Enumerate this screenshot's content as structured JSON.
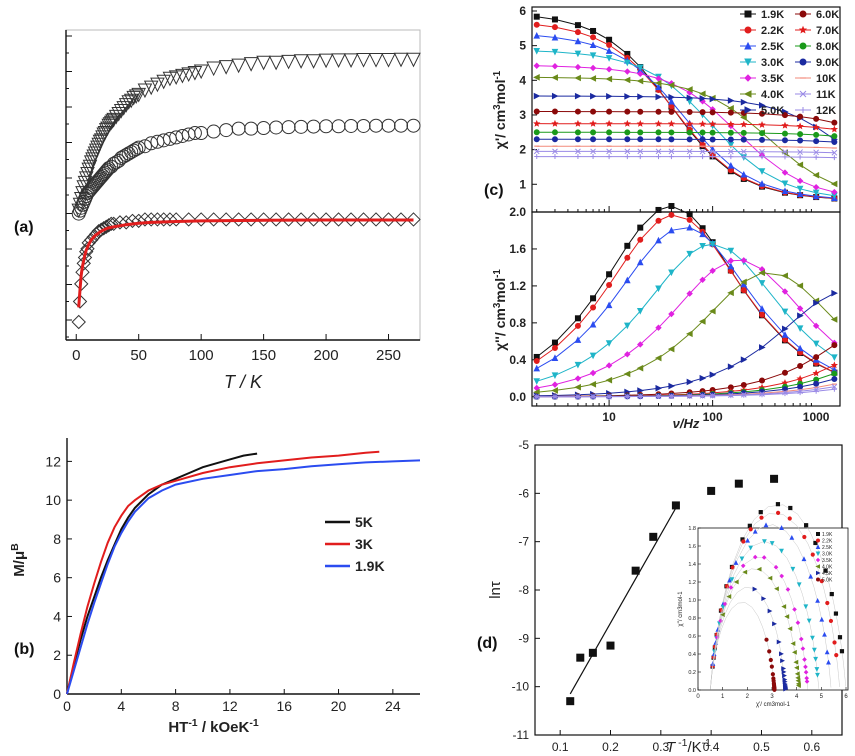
{
  "figure": {
    "panel_labels": {
      "a": "(a)",
      "b": "(b)",
      "c": "(c)",
      "d": "(d)"
    },
    "colors": {
      "black": "#111111",
      "red": "#e11d1d",
      "blue": "#2b4cf0",
      "green": "#1a9a1a",
      "magenta": "#e022e0",
      "olive": "#6a8a1a",
      "navy": "#1b2aa0",
      "darkred": "#8b0a0a",
      "salmon": "#f28a7a",
      "lavender": "#9a8ae6",
      "cyan": "#1fb5c8"
    }
  },
  "chart_data": [
    {
      "id": "a",
      "type": "scatter",
      "title": "",
      "xlabel": "T / K",
      "ylabel": "",
      "xlim": [
        -5,
        272
      ],
      "xticks": [
        0,
        50,
        100,
        150,
        200,
        250
      ],
      "xtick_labels": [
        "0",
        "50",
        "100",
        "150",
        "200",
        "250"
      ],
      "series": [
        {
          "name": "triangle_down",
          "marker": "triangle-down",
          "x": [
            2,
            3,
            4,
            5,
            6,
            7,
            8,
            9,
            10,
            11,
            12,
            13,
            14,
            15,
            16,
            17,
            18,
            19,
            20,
            21,
            22,
            23,
            24,
            25,
            26,
            27,
            28,
            29,
            30,
            32,
            34,
            36,
            38,
            40,
            42,
            44,
            46,
            48,
            50,
            55,
            60,
            65,
            70,
            75,
            80,
            85,
            90,
            95,
            100,
            110,
            120,
            130,
            140,
            150,
            160,
            170,
            180,
            190,
            200,
            210,
            220,
            230,
            240,
            250,
            260,
            270
          ],
          "y": [
            0.38,
            0.4,
            0.42,
            0.44,
            0.46,
            0.475,
            0.49,
            0.505,
            0.52,
            0.53,
            0.545,
            0.555,
            0.565,
            0.575,
            0.585,
            0.595,
            0.605,
            0.615,
            0.62,
            0.63,
            0.64,
            0.645,
            0.655,
            0.66,
            0.67,
            0.675,
            0.68,
            0.685,
            0.69,
            0.7,
            0.71,
            0.72,
            0.73,
            0.74,
            0.75,
            0.755,
            0.765,
            0.77,
            0.775,
            0.79,
            0.8,
            0.81,
            0.82,
            0.83,
            0.835,
            0.84,
            0.845,
            0.85,
            0.855,
            0.865,
            0.87,
            0.875,
            0.88,
            0.885,
            0.885,
            0.888,
            0.89,
            0.89,
            0.892,
            0.893,
            0.893,
            0.894,
            0.894,
            0.894,
            0.895,
            0.895
          ]
        },
        {
          "name": "circle",
          "marker": "circle",
          "x": [
            2,
            3,
            4,
            5,
            6,
            7,
            8,
            9,
            10,
            11,
            12,
            13,
            14,
            15,
            16,
            17,
            18,
            19,
            20,
            21,
            22,
            23,
            24,
            25,
            26,
            28,
            30,
            32,
            34,
            36,
            38,
            40,
            42,
            44,
            46,
            48,
            50,
            55,
            60,
            65,
            70,
            75,
            80,
            85,
            90,
            95,
            100,
            110,
            120,
            130,
            140,
            150,
            160,
            170,
            180,
            190,
            200,
            210,
            220,
            230,
            240,
            250,
            260,
            270
          ],
          "y": [
            0.37,
            0.38,
            0.39,
            0.4,
            0.41,
            0.42,
            0.43,
            0.44,
            0.445,
            0.45,
            0.455,
            0.46,
            0.465,
            0.47,
            0.475,
            0.48,
            0.485,
            0.49,
            0.495,
            0.5,
            0.505,
            0.51,
            0.515,
            0.52,
            0.525,
            0.53,
            0.54,
            0.545,
            0.55,
            0.56,
            0.565,
            0.57,
            0.575,
            0.58,
            0.585,
            0.59,
            0.595,
            0.6,
            0.61,
            0.615,
            0.62,
            0.625,
            0.63,
            0.635,
            0.64,
            0.645,
            0.645,
            0.65,
            0.655,
            0.66,
            0.66,
            0.662,
            0.664,
            0.665,
            0.666,
            0.667,
            0.668,
            0.668,
            0.669,
            0.669,
            0.67,
            0.67,
            0.67,
            0.67
          ]
        },
        {
          "name": "diamond",
          "marker": "diamond",
          "x": [
            2,
            3,
            4,
            5,
            6,
            7,
            8,
            9,
            10,
            12,
            14,
            16,
            18,
            20,
            22,
            24,
            26,
            28,
            30,
            35,
            40,
            45,
            50,
            55,
            60,
            65,
            70,
            75,
            80,
            90,
            100,
            110,
            120,
            130,
            140,
            150,
            160,
            170,
            180,
            190,
            200,
            210,
            220,
            230,
            240,
            250,
            260,
            270
          ],
          "y": [
            0.0,
            0.07,
            0.13,
            0.17,
            0.2,
            0.22,
            0.24,
            0.25,
            0.27,
            0.28,
            0.29,
            0.3,
            0.31,
            0.315,
            0.32,
            0.325,
            0.33,
            0.335,
            0.335,
            0.34,
            0.34,
            0.345,
            0.345,
            0.35,
            0.35,
            0.35,
            0.35,
            0.35,
            0.35,
            0.35,
            0.35,
            0.35,
            0.35,
            0.35,
            0.35,
            0.35,
            0.35,
            0.35,
            0.35,
            0.35,
            0.35,
            0.35,
            0.35,
            0.35,
            0.35,
            0.35,
            0.35,
            0.35
          ]
        },
        {
          "name": "fit",
          "type": "line",
          "x": [
            2,
            3,
            4,
            5,
            6,
            7,
            8,
            10,
            12,
            15,
            20,
            25,
            30,
            40,
            50,
            60,
            80,
            100,
            150,
            200,
            250,
            270
          ],
          "y": [
            0.05,
            0.11,
            0.16,
            0.19,
            0.21,
            0.23,
            0.245,
            0.265,
            0.28,
            0.295,
            0.31,
            0.32,
            0.325,
            0.332,
            0.337,
            0.34,
            0.343,
            0.345,
            0.347,
            0.348,
            0.348,
            0.348
          ]
        }
      ]
    },
    {
      "id": "b",
      "type": "line",
      "title": "",
      "xlabel": "HT-1 / kOeK-1",
      "ylabel": "M/μB",
      "xlim": [
        0,
        26
      ],
      "ylim": [
        0,
        13
      ],
      "xticks": [
        0,
        4,
        8,
        12,
        16,
        20,
        24
      ],
      "xtick_labels": [
        "0",
        "4",
        "8",
        "12",
        "16",
        "20",
        "24"
      ],
      "yticks": [
        0,
        2,
        4,
        6,
        8,
        10,
        12
      ],
      "ytick_labels": [
        "0",
        "2",
        "4",
        "6",
        "8",
        "10",
        "12"
      ],
      "legend": [
        "5K",
        "3K",
        "1.9K"
      ],
      "legend_position": "center-right",
      "series": [
        {
          "name": "5K",
          "color": "black",
          "x": [
            0,
            0.5,
            1,
            1.5,
            2,
            2.5,
            3,
            3.5,
            4,
            4.5,
            5,
            6,
            7,
            8,
            9,
            10,
            11,
            12,
            13,
            14
          ],
          "y": [
            0,
            1.5,
            2.8,
            4.0,
            5.0,
            6.0,
            6.9,
            7.7,
            8.5,
            9.1,
            9.6,
            10.3,
            10.8,
            11.1,
            11.4,
            11.7,
            11.9,
            12.1,
            12.3,
            12.4
          ]
        },
        {
          "name": "3K",
          "color": "red",
          "x": [
            0,
            0.5,
            1,
            1.5,
            2,
            2.5,
            3,
            3.5,
            4,
            4.5,
            5,
            6,
            7,
            8,
            10,
            12,
            14,
            16,
            18,
            20,
            22,
            23
          ],
          "y": [
            0,
            1.6,
            3.1,
            4.5,
            5.7,
            6.8,
            7.8,
            8.6,
            9.2,
            9.7,
            10.0,
            10.5,
            10.8,
            11.0,
            11.4,
            11.7,
            11.9,
            12.05,
            12.2,
            12.3,
            12.45,
            12.5
          ]
        },
        {
          "name": "1.9K",
          "color": "blue",
          "x": [
            0,
            0.5,
            1,
            1.5,
            2,
            2.5,
            3,
            3.5,
            4,
            4.5,
            5,
            6,
            7,
            8,
            10,
            12,
            14,
            16,
            18,
            20,
            22,
            24,
            26
          ],
          "y": [
            0,
            1.2,
            2.4,
            3.6,
            4.7,
            5.7,
            6.7,
            7.6,
            8.3,
            8.9,
            9.4,
            10.1,
            10.5,
            10.8,
            11.1,
            11.3,
            11.5,
            11.6,
            11.75,
            11.85,
            11.95,
            12.0,
            12.05
          ]
        }
      ]
    },
    {
      "id": "c",
      "type": "line",
      "title": "",
      "xlabel": "ν/Hz",
      "x_scale": "log",
      "xlim": [
        1.8,
        1700
      ],
      "xticks": [
        10,
        100,
        1000
      ],
      "xtick_labels": [
        "10",
        "100",
        "1000"
      ],
      "top": {
        "ylabel": "χ'/ cm3mol-1",
        "ylim": [
          0.2,
          6
        ],
        "yticks": [
          1,
          2,
          3,
          4,
          5,
          6
        ],
        "ytick_labels": [
          "1",
          "2",
          "3",
          "4",
          "5",
          "6"
        ]
      },
      "bottom": {
        "ylabel": "χ''/ cm3mol-1",
        "ylim": [
          -0.1,
          2.0
        ],
        "yticks": [
          0.0,
          0.4,
          0.8,
          1.2,
          1.6,
          2.0
        ],
        "ytick_labels": [
          "0.0",
          "0.4",
          "0.8",
          "1.2",
          "1.6",
          "2.0"
        ]
      },
      "legend": [
        "1.9K",
        "2.2K",
        "2.5K",
        "3.0K",
        "3.5K",
        "4.0K",
        "5.0K",
        "6.0K",
        "7.0K",
        "8.0K",
        "9.0K",
        "10K",
        "11K",
        "12K"
      ],
      "legend_position": "top-right",
      "freq": [
        2,
        3,
        5,
        7,
        10,
        15,
        20,
        30,
        40,
        60,
        80,
        100,
        150,
        200,
        300,
        500,
        700,
        1000,
        1500
      ],
      "series": [
        {
          "name": "1.9K",
          "color": "black",
          "marker": "square",
          "x0": 6.0,
          "xinf": 0.5,
          "tau": 0.004,
          "alpha": 0.18
        },
        {
          "name": "2.2K",
          "color": "red",
          "marker": "circle",
          "x0": 5.75,
          "xinf": 0.5,
          "tau": 0.0037,
          "alpha": 0.18
        },
        {
          "name": "2.5K",
          "color": "blue",
          "marker": "triangle-up",
          "x0": 5.4,
          "xinf": 0.5,
          "tau": 0.003,
          "alpha": 0.18
        },
        {
          "name": "3.0K",
          "color": "cyan",
          "marker": "triangle-down",
          "x0": 4.9,
          "xinf": 0.5,
          "tau": 0.0016,
          "alpha": 0.18
        },
        {
          "name": "3.5K",
          "color": "magenta",
          "marker": "diamond",
          "x0": 4.45,
          "xinf": 0.5,
          "tau": 0.0009,
          "alpha": 0.18
        },
        {
          "name": "4.0K",
          "color": "olive",
          "marker": "triangle-left",
          "x0": 4.1,
          "xinf": 0.5,
          "tau": 0.00045,
          "alpha": 0.18
        },
        {
          "name": "5.0K",
          "color": "navy",
          "marker": "triangle-right",
          "x0": 3.55,
          "xinf": 0.5,
          "tau": 8e-05,
          "alpha": 0.18
        },
        {
          "name": "6.0K",
          "color": "darkred",
          "marker": "circle",
          "x0": 3.1,
          "xinf": 0.5,
          "tau": 2.2e-05,
          "alpha": 0.18
        },
        {
          "name": "7.0K",
          "color": "red",
          "marker": "star",
          "x0": 2.75,
          "xinf": 0.5,
          "tau": 1.3e-05,
          "alpha": 0.18
        },
        {
          "name": "8.0K",
          "color": "green",
          "marker": "circle",
          "x0": 2.5,
          "xinf": 0.5,
          "tau": 1e-05,
          "alpha": 0.18
        },
        {
          "name": "9.0K",
          "color": "navy",
          "marker": "circle",
          "x0": 2.3,
          "xinf": 0.5,
          "tau": 8e-06,
          "alpha": 0.18
        },
        {
          "name": "10K",
          "color": "salmon",
          "marker": "dash",
          "x0": 2.1,
          "xinf": 0.5,
          "tau": 6e-06,
          "alpha": 0.18
        },
        {
          "name": "11K",
          "color": "lavender",
          "marker": "x",
          "x0": 1.95,
          "xinf": 0.5,
          "tau": 5e-06,
          "alpha": 0.18
        },
        {
          "name": "12K",
          "color": "lavender",
          "marker": "plus",
          "x0": 1.8,
          "xinf": 0.5,
          "tau": 4e-06,
          "alpha": 0.18
        }
      ]
    },
    {
      "id": "d",
      "type": "scatter",
      "title": "",
      "xlabel": "T-1/K-1",
      "ylabel": "lnτ",
      "xlim": [
        0.05,
        0.66
      ],
      "ylim": [
        -11,
        -5
      ],
      "xticks": [
        0.1,
        0.2,
        0.3,
        0.4,
        0.5,
        0.6
      ],
      "xtick_labels": [
        "0.1",
        "0.2",
        "0.3",
        "0.4",
        "0.5",
        "0.6"
      ],
      "yticks": [
        -11,
        -10,
        -9,
        -8,
        -7,
        -6,
        -5
      ],
      "ytick_labels": [
        "-11",
        "-10",
        "-9",
        "-8",
        "-7",
        "-6",
        "-5"
      ],
      "points": {
        "x": [
          0.12,
          0.14,
          0.165,
          0.2,
          0.25,
          0.285,
          0.33,
          0.4,
          0.455,
          0.525
        ],
        "y": [
          -10.3,
          -9.4,
          -9.3,
          -9.15,
          -7.6,
          -6.9,
          -6.25,
          -5.95,
          -5.8,
          -5.7
        ]
      },
      "fit": {
        "x": [
          0.12,
          0.33
        ],
        "y": [
          -10.15,
          -6.3
        ]
      },
      "inset": {
        "type": "scatter",
        "xlabel": "χ'/ cm3mol-1",
        "ylabel": "χ''/ cm3mol-1",
        "xlim": [
          0,
          6
        ],
        "ylim": [
          0,
          1.8
        ],
        "xticks": [
          0,
          1,
          2,
          3,
          4,
          5,
          6
        ],
        "xtick_labels": [
          "0",
          "1",
          "2",
          "3",
          "4",
          "5",
          "6"
        ],
        "yticks": [
          0.0,
          0.2,
          0.4,
          0.6,
          0.8,
          1.0,
          1.2,
          1.4,
          1.6,
          1.8
        ],
        "ytick_labels": [
          "0.0",
          "0.2",
          "0.4",
          "0.6",
          "0.8",
          "1.0",
          "1.2",
          "1.4",
          "1.6",
          "1.8"
        ],
        "legend": [
          "1.9K",
          "2.2K",
          "2.5K",
          "3.0K",
          "3.5K",
          "4.0K",
          "4.5K",
          "5.0K"
        ],
        "legend_position": "top-right"
      }
    }
  ]
}
